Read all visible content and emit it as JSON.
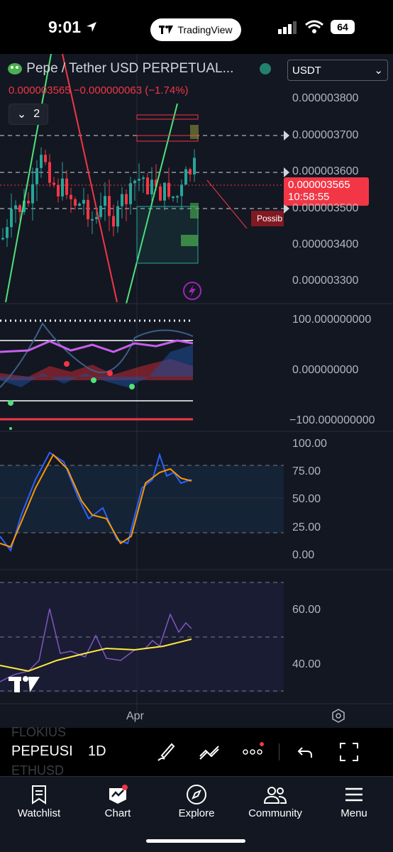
{
  "status_bar": {
    "time": "9:01",
    "app_pill": "TradingView",
    "battery": "64"
  },
  "chart": {
    "symbol_title": "Pepe / Tether USD PERPETUAL...",
    "price_change": "0.000003565 −0.000000063 (−1.74%)",
    "currency_select": "USDT",
    "collapse_count": "2",
    "price_tag_value": "0.000003565",
    "price_tag_countdown": "10:58:55",
    "annotation_label": "Possib",
    "price_axis": [
      "0.000003800",
      "0.000003700",
      "0.000003600",
      "0.000003500",
      "0.000003400",
      "0.000003300"
    ],
    "osc1_axis": [
      "100.000000000",
      "0.000000000",
      "−100.000000000"
    ],
    "rsi_axis": [
      "100.00",
      "75.00",
      "50.00",
      "25.00",
      "0.00"
    ],
    "osc3_axis": [
      "60.00",
      "40.00"
    ],
    "time_label": "Apr"
  },
  "toolbar": {
    "symbol": "PEPEUSI",
    "interval": "1D",
    "watchlist_above": "FLOKIUS",
    "watchlist_below": "ETHUSD"
  },
  "tabs": [
    {
      "label": "Watchlist",
      "icon": "bookmark-icon"
    },
    {
      "label": "Chart",
      "icon": "chart-icon"
    },
    {
      "label": "Explore",
      "icon": "compass-icon"
    },
    {
      "label": "Community",
      "icon": "community-icon"
    },
    {
      "label": "Menu",
      "icon": "menu-icon"
    }
  ],
  "colors": {
    "up": "#26a69a",
    "down": "#f23645",
    "accent": "#2962ff",
    "bg": "#131722"
  }
}
